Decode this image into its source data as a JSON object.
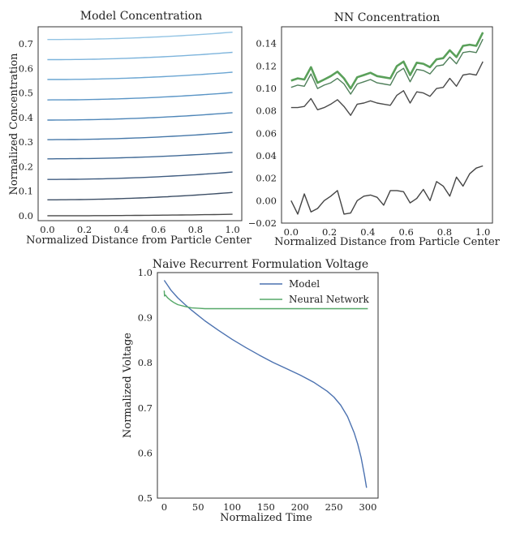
{
  "chart_data": [
    {
      "type": "line",
      "title": "Model Concentration",
      "xlabel": "Normalized Distance from Particle Center",
      "ylabel": "Normalized Concentration",
      "xlim": [
        -0.05,
        1.05
      ],
      "ylim": [
        -0.02,
        0.77
      ],
      "xticks": [
        0.0,
        0.2,
        0.4,
        0.6,
        0.8,
        1.0
      ],
      "xtick_labels": [
        "0.0",
        "0.2",
        "0.4",
        "0.6",
        "0.8",
        "1.0"
      ],
      "yticks": [
        0.0,
        0.1,
        0.2,
        0.3,
        0.4,
        0.5,
        0.6,
        0.7
      ],
      "ytick_labels": [
        "0.0",
        "0.1",
        "0.2",
        "0.3",
        "0.4",
        "0.5",
        "0.6",
        "0.7"
      ],
      "grid": false,
      "series": [
        {
          "color": "#4a4a4a",
          "start": 0.0,
          "end": 0.006
        },
        {
          "color": "#3d4f66",
          "start": 0.065,
          "end": 0.095
        },
        {
          "color": "#3f5c80",
          "start": 0.148,
          "end": 0.178
        },
        {
          "color": "#416a96",
          "start": 0.232,
          "end": 0.258
        },
        {
          "color": "#4577a8",
          "start": 0.31,
          "end": 0.34
        },
        {
          "color": "#4e86b8",
          "start": 0.39,
          "end": 0.42
        },
        {
          "color": "#5a95c6",
          "start": 0.472,
          "end": 0.502
        },
        {
          "color": "#6aa5d2",
          "start": 0.555,
          "end": 0.585
        },
        {
          "color": "#7db4dc",
          "start": 0.636,
          "end": 0.666
        },
        {
          "color": "#93c4e4",
          "start": 0.718,
          "end": 0.748
        }
      ]
    },
    {
      "type": "line",
      "title": "NN Concentration",
      "xlabel": "Normalized Distance from Particle Center",
      "ylabel": "",
      "xlim": [
        -0.05,
        1.05
      ],
      "ylim": [
        -0.02,
        0.155
      ],
      "xticks": [
        0.0,
        0.2,
        0.4,
        0.6,
        0.8,
        1.0
      ],
      "xtick_labels": [
        "0.0",
        "0.2",
        "0.4",
        "0.6",
        "0.8",
        "1.0"
      ],
      "yticks": [
        -0.02,
        0.0,
        0.02,
        0.04,
        0.06,
        0.08,
        0.1,
        0.12,
        0.14
      ],
      "ytick_labels": [
        "−0.02",
        "0.00",
        "0.02",
        "0.04",
        "0.06",
        "0.08",
        "0.10",
        "0.12",
        "0.14"
      ],
      "grid": false,
      "x": [
        0.0,
        0.0345,
        0.069,
        0.1034,
        0.1379,
        0.1724,
        0.2069,
        0.2414,
        0.2759,
        0.3103,
        0.3448,
        0.3793,
        0.4138,
        0.4483,
        0.4828,
        0.5172,
        0.5517,
        0.5862,
        0.6207,
        0.6552,
        0.6897,
        0.7241,
        0.7586,
        0.7931,
        0.8276,
        0.8621,
        0.8966,
        0.931,
        0.9655,
        1.0
      ],
      "series": [
        {
          "color": "#444444",
          "values": [
            0.0,
            -0.012,
            0.006,
            -0.01,
            -0.007,
            0.0,
            0.004,
            0.009,
            -0.012,
            -0.011,
            0.0,
            0.004,
            0.005,
            0.003,
            -0.004,
            0.009,
            0.009,
            0.008,
            -0.002,
            0.002,
            0.01,
            0.0,
            0.017,
            0.013,
            0.004,
            0.021,
            0.013,
            0.024,
            0.029,
            0.031
          ]
        },
        {
          "color": "#4a4a4a",
          "values": [
            0.083,
            0.083,
            0.084,
            0.091,
            0.081,
            0.083,
            0.086,
            0.09,
            0.084,
            0.076,
            0.086,
            0.087,
            0.089,
            0.087,
            0.086,
            0.085,
            0.094,
            0.098,
            0.087,
            0.097,
            0.096,
            0.093,
            0.1,
            0.101,
            0.109,
            0.102,
            0.112,
            0.113,
            0.112,
            0.124
          ]
        },
        {
          "color": "#4f7f5a",
          "values": [
            0.101,
            0.103,
            0.102,
            0.113,
            0.1,
            0.103,
            0.105,
            0.109,
            0.104,
            0.095,
            0.104,
            0.106,
            0.108,
            0.105,
            0.104,
            0.103,
            0.114,
            0.118,
            0.106,
            0.117,
            0.116,
            0.113,
            0.12,
            0.121,
            0.128,
            0.122,
            0.132,
            0.133,
            0.132,
            0.144
          ]
        },
        {
          "color": "#5aa05a",
          "values": [
            0.107,
            0.109,
            0.108,
            0.119,
            0.105,
            0.108,
            0.111,
            0.115,
            0.109,
            0.1,
            0.11,
            0.112,
            0.114,
            0.111,
            0.11,
            0.109,
            0.12,
            0.124,
            0.112,
            0.123,
            0.122,
            0.119,
            0.126,
            0.127,
            0.134,
            0.128,
            0.138,
            0.139,
            0.138,
            0.15
          ]
        }
      ]
    },
    {
      "type": "line",
      "title": "Naive Recurrent Formulation Voltage",
      "xlabel": "Normalized Time",
      "ylabel": "Normalized Voltage",
      "xlim": [
        -10,
        315
      ],
      "ylim": [
        0.5,
        1.0
      ],
      "xticks": [
        0,
        50,
        100,
        150,
        200,
        250,
        300
      ],
      "xtick_labels": [
        "0",
        "50",
        "100",
        "150",
        "200",
        "250",
        "300"
      ],
      "yticks": [
        0.5,
        0.6,
        0.7,
        0.8,
        0.9,
        1.0
      ],
      "ytick_labels": [
        "0.5",
        "0.6",
        "0.7",
        "0.8",
        "0.9",
        "1.0"
      ],
      "grid": false,
      "legend": "top-right",
      "series": [
        {
          "name": "Model",
          "color": "#4c72b0",
          "x": [
            0,
            5,
            10,
            20,
            30,
            40,
            50,
            60,
            80,
            100,
            120,
            140,
            160,
            180,
            200,
            220,
            240,
            250,
            260,
            270,
            280,
            285,
            290,
            295,
            298
          ],
          "y": [
            0.983,
            0.972,
            0.961,
            0.944,
            0.93,
            0.917,
            0.905,
            0.893,
            0.872,
            0.852,
            0.834,
            0.817,
            0.801,
            0.787,
            0.773,
            0.757,
            0.737,
            0.724,
            0.706,
            0.681,
            0.644,
            0.62,
            0.59,
            0.55,
            0.523
          ]
        },
        {
          "name": "Neural Network",
          "color": "#55a868",
          "x": [
            0,
            0.5,
            2,
            5,
            10,
            15,
            20,
            30,
            40,
            50,
            60,
            100,
            150,
            200,
            250,
            300
          ],
          "y": [
            0.96,
            0.948,
            0.95,
            0.944,
            0.938,
            0.933,
            0.929,
            0.925,
            0.922,
            0.921,
            0.92,
            0.92,
            0.92,
            0.92,
            0.92,
            0.92
          ]
        }
      ]
    }
  ]
}
